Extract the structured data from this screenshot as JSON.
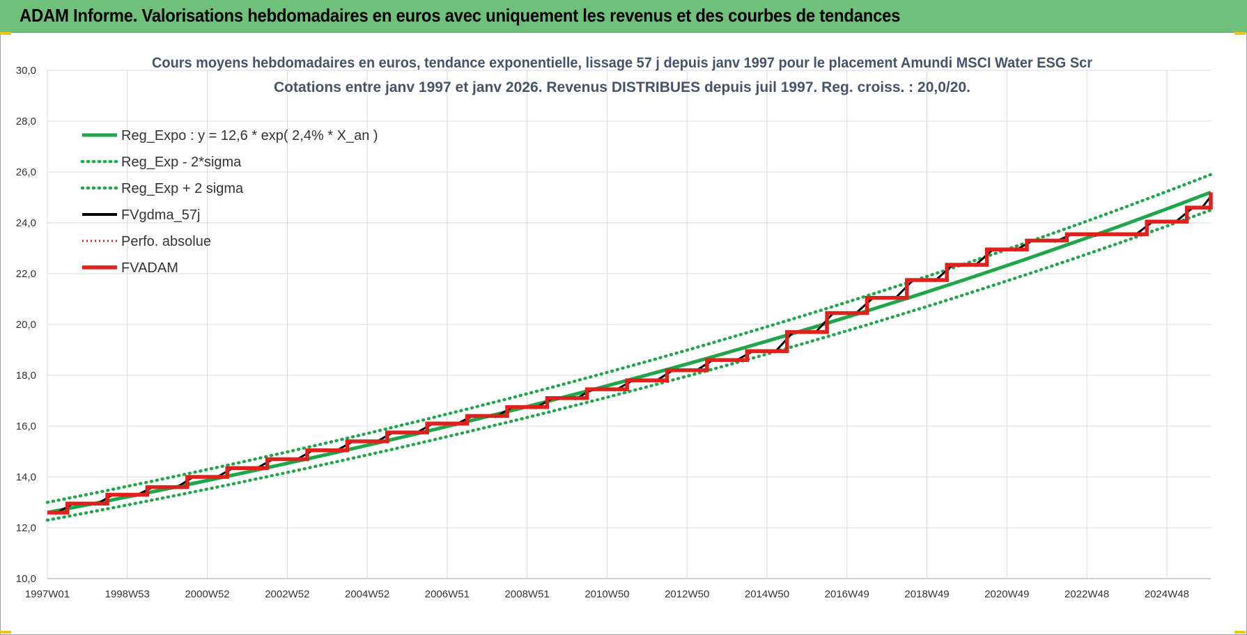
{
  "banner": {
    "title": "ADAM Informe. Valorisations hebdomadaires en euros avec uniquement les revenus et des courbes de tendances"
  },
  "colors": {
    "banner_bg": "#6ec07a",
    "reg_expo": "#1fa64a",
    "sigma": "#1fa64a",
    "fvgdma": "#000000",
    "perfo": "#e0201b",
    "fvadam": "#e0201b",
    "grid": "#d9d9d9"
  },
  "chart_data": {
    "type": "line",
    "title": [
      "Cours moyens hebdomadaires en euros, tendance exponentielle, lissage 57 j depuis janv 1997  pour le placement Amundi MSCI Water ESG Scr",
      "Cotations entre janv 1997 et janv 2026. Revenus DISTRIBUES depuis juil 1997. Reg. croiss. : 20,0/20."
    ],
    "xlabel": "",
    "ylabel": "",
    "ylim": [
      10,
      30
    ],
    "yticks": [
      "10,0",
      "12,0",
      "14,0",
      "16,0",
      "18,0",
      "20,0",
      "22,0",
      "24,0",
      "26,0",
      "28,0",
      "30,0"
    ],
    "xlim": [
      1997.0,
      2026.1
    ],
    "xticks": [
      {
        "label": "1997W01",
        "year": 1997.0
      },
      {
        "label": "1998W53",
        "year": 1999.0
      },
      {
        "label": "2000W52",
        "year": 2001.0
      },
      {
        "label": "2002W52",
        "year": 2003.0
      },
      {
        "label": "2004W52",
        "year": 2005.0
      },
      {
        "label": "2006W51",
        "year": 2007.0
      },
      {
        "label": "2008W51",
        "year": 2009.0
      },
      {
        "label": "2010W50",
        "year": 2011.0
      },
      {
        "label": "2012W50",
        "year": 2013.0
      },
      {
        "label": "2014W50",
        "year": 2015.0
      },
      {
        "label": "2016W49",
        "year": 2017.0
      },
      {
        "label": "2018W49",
        "year": 2019.0
      },
      {
        "label": "2020W49",
        "year": 2021.0
      },
      {
        "label": "2022W48",
        "year": 2023.0
      },
      {
        "label": "2024W48",
        "year": 2025.0
      }
    ],
    "grid": true,
    "legend_position": "top-left",
    "series": [
      {
        "name": "Reg_Expo : y = 12,6 * exp( 2,4% *  X_an )",
        "style": "solid-thick",
        "x": [
          1997.0,
          2026.1
        ],
        "y": [
          12.6,
          25.2
        ]
      },
      {
        "name": "Reg_Exp - 2*sigma",
        "style": "dotted",
        "x": [
          1997.0,
          2026.1
        ],
        "y": [
          12.3,
          24.5
        ]
      },
      {
        "name": "Reg_Exp + 2 sigma",
        "style": "dotted",
        "x": [
          1997.0,
          2026.1
        ],
        "y": [
          13.0,
          25.9
        ]
      },
      {
        "name": "FVgdma_57j",
        "style": "solid",
        "x": [],
        "y": []
      },
      {
        "name": "Perfo. absolue",
        "style": "dotted",
        "x": [],
        "y": []
      },
      {
        "name": "FVADAM",
        "style": "step-thick",
        "x": [
          1997.0,
          1997.5,
          1998.5,
          1999.5,
          2000.5,
          2001.5,
          2002.5,
          2003.5,
          2004.5,
          2005.5,
          2006.5,
          2007.5,
          2008.5,
          2009.5,
          2010.5,
          2011.5,
          2012.5,
          2013.5,
          2014.5,
          2015.5,
          2016.5,
          2017.5,
          2018.5,
          2019.5,
          2020.5,
          2021.5,
          2022.5,
          2023.5,
          2024.5,
          2025.5
        ],
        "y": [
          12.6,
          12.95,
          13.3,
          13.6,
          14.0,
          14.35,
          14.7,
          15.05,
          15.4,
          15.75,
          16.1,
          16.4,
          16.75,
          17.1,
          17.45,
          17.8,
          18.2,
          18.6,
          18.95,
          19.7,
          20.45,
          21.05,
          21.75,
          22.35,
          22.95,
          23.3,
          23.55,
          23.55,
          24.05,
          24.6
        ],
        "end_x": 2026.1,
        "end_y": 25.2
      }
    ]
  }
}
